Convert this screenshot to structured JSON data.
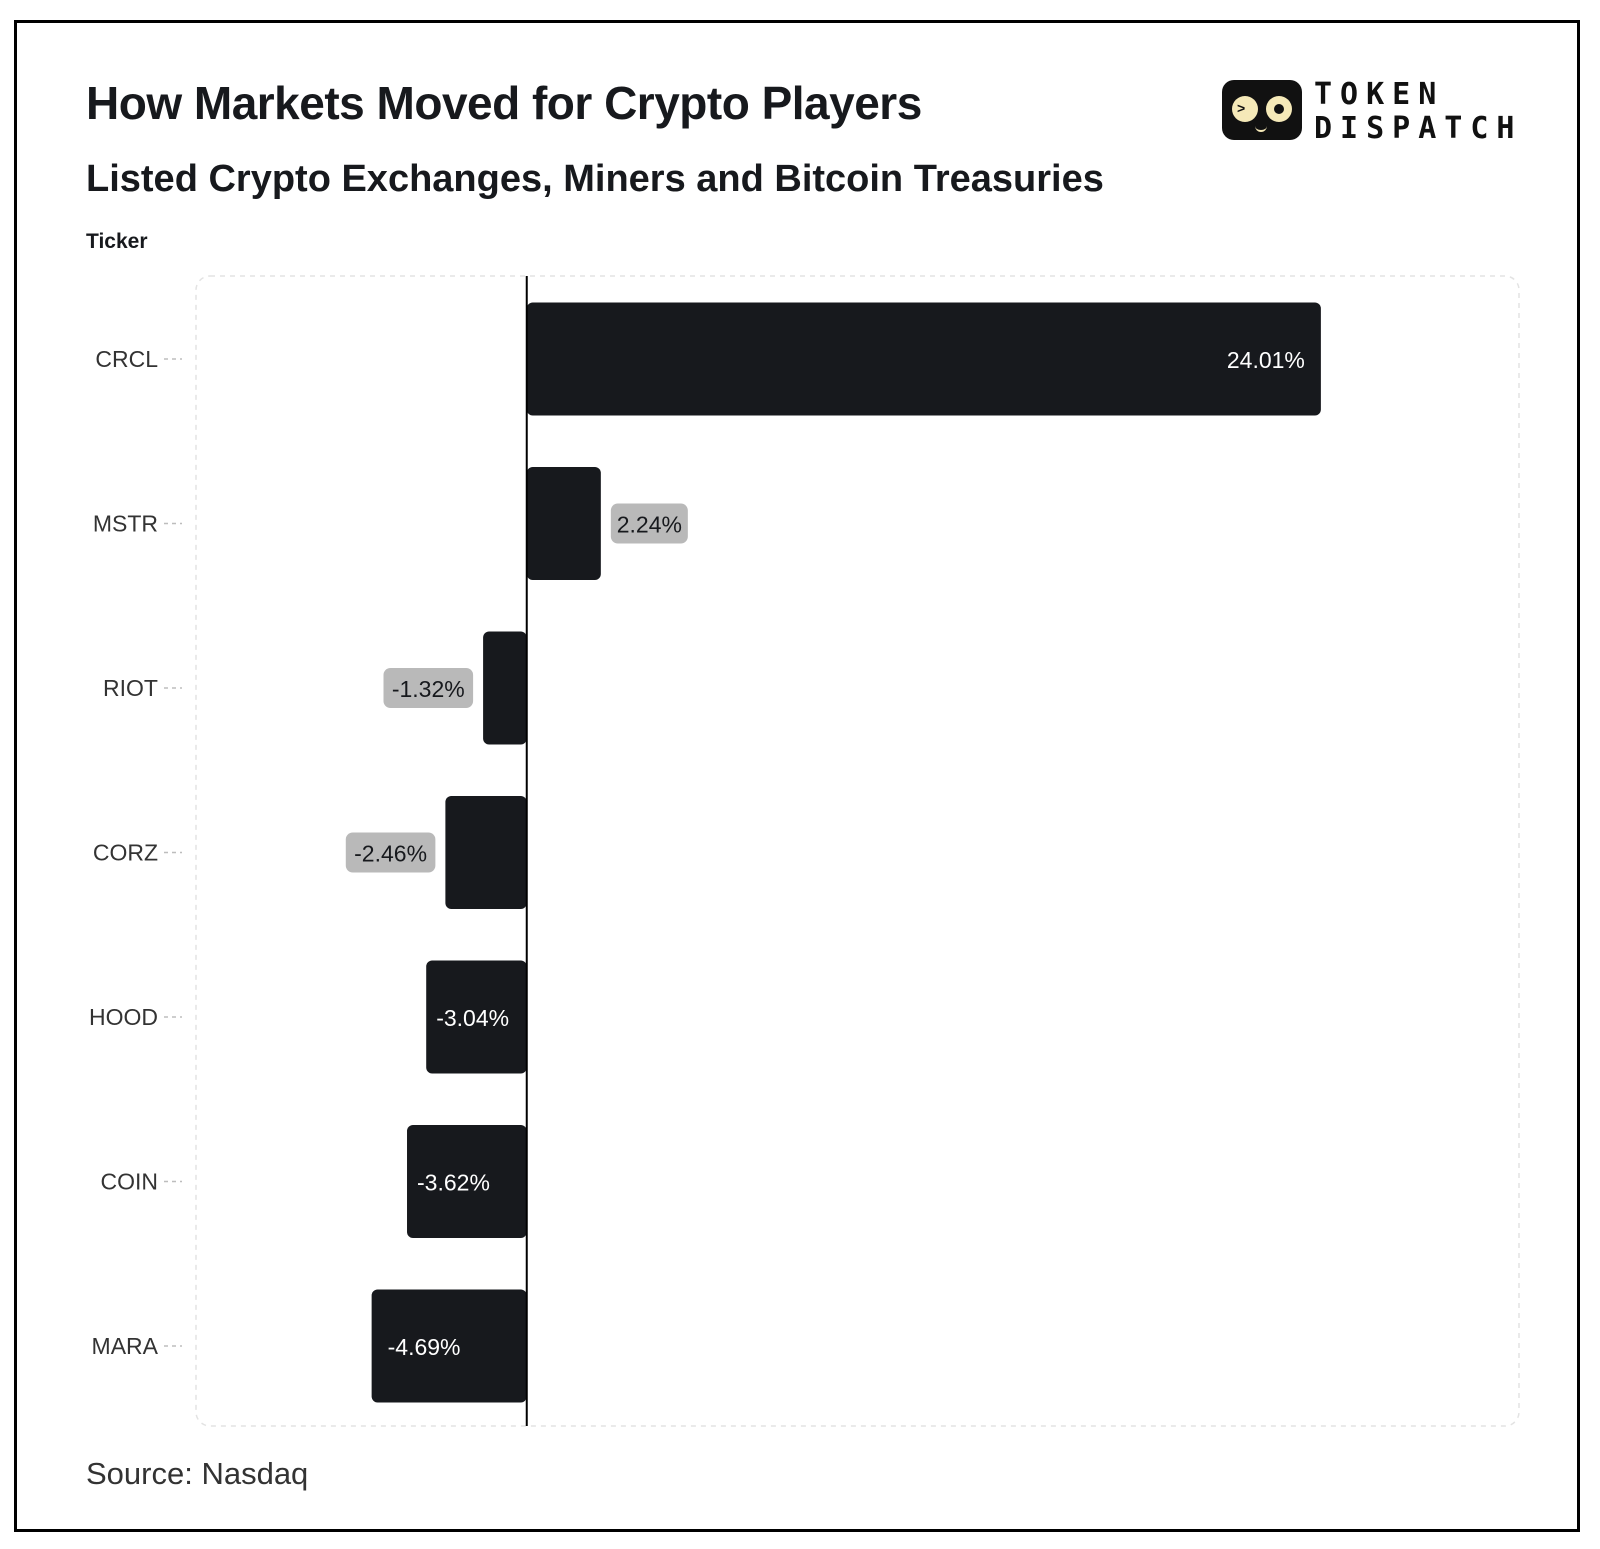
{
  "header": {
    "title": "How Markets Moved for Crypto Players",
    "subtitle": "Listed Crypto Exchanges, Miners and Bitcoin Treasuries",
    "y_axis_title": "Ticker"
  },
  "logo": {
    "line1": "TOKEN",
    "line2": "DISPATCH",
    "icon": "token-dispatch-face-logo"
  },
  "footer": {
    "source": "Source: Nasdaq"
  },
  "colors": {
    "bar": "#17191d",
    "outside_label_bg": "#b9b9b9",
    "inside_label_text": "#ffffff",
    "outside_label_text": "#17191d",
    "tick_text": "#333333"
  },
  "chart_data": {
    "type": "bar",
    "orientation": "horizontal",
    "categories": [
      "CRCL",
      "MSTR",
      "RIOT",
      "CORZ",
      "HOOD",
      "COIN",
      "MARA"
    ],
    "values": [
      24.01,
      2.24,
      -1.32,
      -2.46,
      -3.04,
      -3.62,
      -4.69
    ],
    "data_labels": [
      "24.01%",
      "2.24%",
      "-1.32%",
      "-2.46%",
      "-3.04%",
      "-3.62%",
      "-4.69%"
    ],
    "title": "How Markets Moved for Crypto Players",
    "subtitle": "Listed Crypto Exchanges, Miners and Bitcoin Treasuries",
    "ylabel": "Ticker",
    "xlabel": "",
    "xlim": [
      -10,
      30
    ],
    "unit": "%",
    "grid": false,
    "legend": "none"
  }
}
